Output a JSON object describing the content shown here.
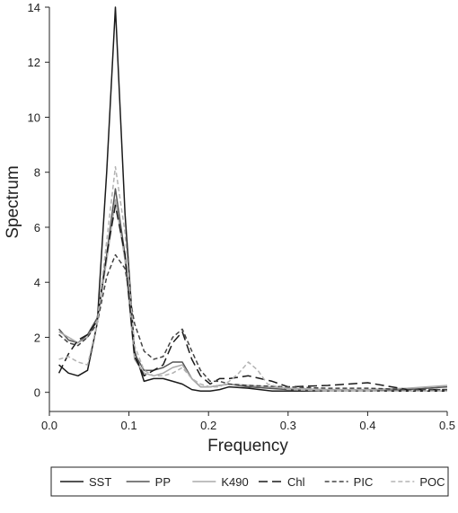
{
  "chart_data": {
    "type": "line",
    "xlabel": "Frequency",
    "ylabel": "Spectrum",
    "xlim": [
      0,
      0.5
    ],
    "ylim": [
      -0.5,
      14
    ],
    "xticks": [
      0.0,
      0.1,
      0.2,
      0.3,
      0.4,
      0.5
    ],
    "xtick_labels": [
      "0.0",
      "0.1",
      "0.2",
      "0.3",
      "0.4",
      "0.5"
    ],
    "yticks": [
      0,
      2,
      4,
      6,
      8,
      10,
      12,
      14
    ],
    "ytick_labels": [
      "0",
      "2",
      "4",
      "6",
      "8",
      "10",
      "12",
      "14"
    ],
    "grid": false,
    "legend_position": "bottom",
    "series": [
      {
        "name": "SST",
        "color": "#1a1a1a",
        "dash": "solid",
        "x": [
          0.012,
          0.024,
          0.036,
          0.048,
          0.06,
          0.072,
          0.083,
          0.095,
          0.107,
          0.119,
          0.131,
          0.143,
          0.155,
          0.167,
          0.179,
          0.19,
          0.202,
          0.214,
          0.226,
          0.25,
          0.28,
          0.3,
          0.35,
          0.4,
          0.45,
          0.5
        ],
        "y": [
          1.0,
          0.7,
          0.6,
          0.8,
          2.5,
          8.0,
          14.0,
          6.5,
          1.5,
          0.4,
          0.5,
          0.5,
          0.4,
          0.3,
          0.1,
          0.05,
          0.05,
          0.1,
          0.2,
          0.15,
          0.05,
          0.05,
          0.05,
          0.05,
          0.05,
          0.05
        ]
      },
      {
        "name": "PP",
        "color": "#555555",
        "dash": "solid",
        "x": [
          0.012,
          0.024,
          0.036,
          0.048,
          0.06,
          0.072,
          0.083,
          0.095,
          0.107,
          0.119,
          0.131,
          0.143,
          0.155,
          0.167,
          0.179,
          0.19,
          0.202,
          0.214,
          0.226,
          0.25,
          0.3,
          0.35,
          0.4,
          0.45,
          0.5
        ],
        "y": [
          2.3,
          1.9,
          1.8,
          2.1,
          2.7,
          5.0,
          7.4,
          5.0,
          1.4,
          0.8,
          0.8,
          0.9,
          1.1,
          1.1,
          0.5,
          0.2,
          0.2,
          0.25,
          0.3,
          0.2,
          0.1,
          0.05,
          0.05,
          0.1,
          0.2
        ]
      },
      {
        "name": "K490",
        "color": "#aaaaaa",
        "dash": "solid",
        "x": [
          0.012,
          0.024,
          0.036,
          0.048,
          0.06,
          0.072,
          0.083,
          0.095,
          0.107,
          0.119,
          0.131,
          0.143,
          0.155,
          0.167,
          0.179,
          0.19,
          0.202,
          0.214,
          0.226,
          0.25,
          0.3,
          0.35,
          0.4,
          0.45,
          0.5
        ],
        "y": [
          2.2,
          2.0,
          1.8,
          2.0,
          2.6,
          4.8,
          7.0,
          4.8,
          1.2,
          0.7,
          0.6,
          0.7,
          0.9,
          1.0,
          0.5,
          0.2,
          0.2,
          0.25,
          0.3,
          0.25,
          0.15,
          0.1,
          0.1,
          0.15,
          0.25
        ]
      },
      {
        "name": "Chl",
        "color": "#1a1a1a",
        "dash": "longdash",
        "x": [
          0.012,
          0.024,
          0.036,
          0.048,
          0.06,
          0.072,
          0.083,
          0.095,
          0.107,
          0.119,
          0.131,
          0.143,
          0.155,
          0.167,
          0.179,
          0.19,
          0.202,
          0.214,
          0.226,
          0.25,
          0.28,
          0.3,
          0.35,
          0.4,
          0.45,
          0.5
        ],
        "y": [
          0.7,
          1.4,
          1.9,
          2.1,
          2.6,
          5.0,
          6.8,
          5.0,
          1.3,
          0.6,
          0.8,
          1.0,
          1.8,
          2.2,
          1.2,
          0.6,
          0.3,
          0.5,
          0.5,
          0.6,
          0.4,
          0.2,
          0.25,
          0.35,
          0.1,
          0.1
        ]
      },
      {
        "name": "PIC",
        "color": "#444444",
        "dash": "shortdash",
        "x": [
          0.012,
          0.024,
          0.036,
          0.048,
          0.06,
          0.072,
          0.083,
          0.095,
          0.107,
          0.119,
          0.131,
          0.143,
          0.155,
          0.167,
          0.179,
          0.19,
          0.202,
          0.214,
          0.226,
          0.25,
          0.3,
          0.35,
          0.4,
          0.45,
          0.5
        ],
        "y": [
          2.1,
          1.8,
          1.7,
          2.0,
          2.5,
          4.2,
          5.0,
          4.5,
          2.5,
          1.5,
          1.2,
          1.3,
          2.0,
          2.3,
          1.5,
          0.8,
          0.4,
          0.4,
          0.3,
          0.25,
          0.2,
          0.15,
          0.15,
          0.1,
          0.1
        ]
      },
      {
        "name": "POC",
        "color": "#b3b3b3",
        "dash": "shortdash",
        "x": [
          0.012,
          0.024,
          0.036,
          0.048,
          0.06,
          0.072,
          0.083,
          0.095,
          0.107,
          0.119,
          0.131,
          0.143,
          0.155,
          0.167,
          0.179,
          0.19,
          0.202,
          0.214,
          0.226,
          0.238,
          0.25,
          0.262,
          0.274,
          0.3,
          0.35,
          0.4,
          0.45,
          0.5
        ],
        "y": [
          1.2,
          1.3,
          1.1,
          1.0,
          2.5,
          5.5,
          8.2,
          5.8,
          1.7,
          0.8,
          0.6,
          0.6,
          0.7,
          0.9,
          0.5,
          0.3,
          0.2,
          0.2,
          0.4,
          0.7,
          1.1,
          0.8,
          0.3,
          0.1,
          0.05,
          0.05,
          0.05,
          0.05
        ]
      }
    ]
  }
}
